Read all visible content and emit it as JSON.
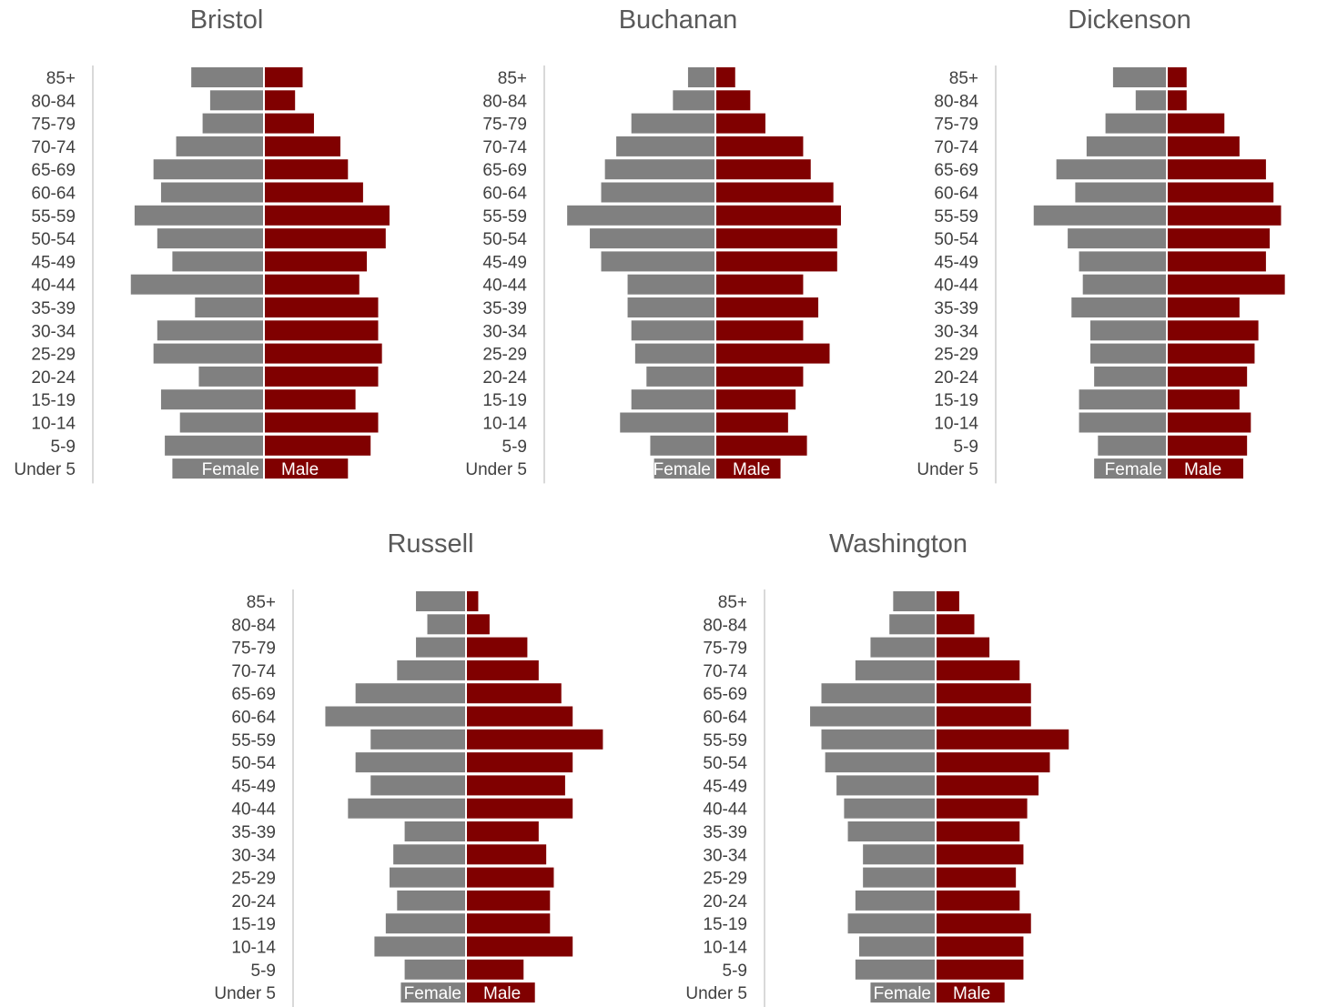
{
  "colors": {
    "female": "#808080",
    "male": "#800000",
    "axis": "#d9d9d9",
    "text": "#404040",
    "title": "#595959"
  },
  "chart_data": [
    {
      "type": "bar",
      "orientation": "population-pyramid",
      "title": "Bristol",
      "categories": [
        "85+",
        "80-84",
        "75-79",
        "70-74",
        "65-69",
        "60-64",
        "55-59",
        "50-54",
        "45-49",
        "40-44",
        "35-39",
        "30-34",
        "25-29",
        "20-24",
        "15-19",
        "10-14",
        "5-9",
        "Under 5"
      ],
      "series": [
        {
          "name": "Female",
          "values": [
            1.9,
            1.4,
            1.6,
            2.3,
            2.9,
            2.7,
            3.4,
            2.8,
            2.4,
            3.5,
            1.8,
            2.8,
            2.9,
            1.7,
            2.7,
            2.2,
            2.6,
            2.4
          ]
        },
        {
          "name": "Male",
          "values": [
            1.0,
            0.8,
            1.3,
            2.0,
            2.2,
            2.6,
            3.3,
            3.2,
            2.7,
            2.5,
            3.0,
            3.0,
            3.1,
            3.0,
            2.4,
            3.0,
            2.8,
            2.2
          ]
        }
      ]
    },
    {
      "type": "bar",
      "orientation": "population-pyramid",
      "title": "Buchanan",
      "categories": [
        "85+",
        "80-84",
        "75-79",
        "70-74",
        "65-69",
        "60-64",
        "55-59",
        "50-54",
        "45-49",
        "40-44",
        "35-39",
        "30-34",
        "25-29",
        "20-24",
        "15-19",
        "10-14",
        "5-9",
        "Under 5"
      ],
      "series": [
        {
          "name": "Female",
          "values": [
            0.7,
            1.1,
            2.2,
            2.6,
            2.9,
            3.0,
            3.9,
            3.3,
            3.0,
            2.3,
            2.3,
            2.2,
            2.1,
            1.8,
            2.2,
            2.5,
            1.7,
            1.6
          ]
        },
        {
          "name": "Male",
          "values": [
            0.5,
            0.9,
            1.3,
            2.3,
            2.5,
            3.1,
            3.3,
            3.2,
            3.2,
            2.3,
            2.7,
            2.3,
            3.0,
            2.3,
            2.1,
            1.9,
            2.4,
            1.7
          ]
        }
      ]
    },
    {
      "type": "bar",
      "orientation": "population-pyramid",
      "title": "Dickenson",
      "categories": [
        "85+",
        "80-84",
        "75-79",
        "70-74",
        "65-69",
        "60-64",
        "55-59",
        "50-54",
        "45-49",
        "40-44",
        "35-39",
        "30-34",
        "25-29",
        "20-24",
        "15-19",
        "10-14",
        "5-9",
        "Under 5"
      ],
      "series": [
        {
          "name": "Female",
          "values": [
            1.4,
            0.8,
            1.6,
            2.1,
            2.9,
            2.4,
            3.5,
            2.6,
            2.3,
            2.2,
            2.5,
            2.0,
            2.0,
            1.9,
            2.3,
            2.3,
            1.8,
            1.9
          ]
        },
        {
          "name": "Male",
          "values": [
            0.5,
            0.5,
            1.5,
            1.9,
            2.6,
            2.8,
            3.0,
            2.7,
            2.6,
            3.1,
            1.9,
            2.4,
            2.3,
            2.1,
            1.9,
            2.2,
            2.1,
            2.0
          ]
        }
      ]
    },
    {
      "type": "bar",
      "orientation": "population-pyramid",
      "title": "Russell",
      "categories": [
        "85+",
        "80-84",
        "75-79",
        "70-74",
        "65-69",
        "60-64",
        "55-59",
        "50-54",
        "45-49",
        "40-44",
        "35-39",
        "30-34",
        "25-29",
        "20-24",
        "15-19",
        "10-14",
        "5-9",
        "Under 5"
      ],
      "series": [
        {
          "name": "Female",
          "values": [
            1.3,
            1.0,
            1.3,
            1.8,
            2.9,
            3.7,
            2.5,
            2.9,
            2.5,
            3.1,
            1.6,
            1.9,
            2.0,
            1.8,
            2.1,
            2.4,
            1.6,
            1.7
          ]
        },
        {
          "name": "Male",
          "values": [
            0.3,
            0.6,
            1.6,
            1.9,
            2.5,
            2.8,
            3.6,
            2.8,
            2.6,
            2.8,
            1.9,
            2.1,
            2.3,
            2.2,
            2.2,
            2.8,
            1.5,
            1.8
          ]
        }
      ]
    },
    {
      "type": "bar",
      "orientation": "population-pyramid",
      "title": "Washington",
      "categories": [
        "85+",
        "80-84",
        "75-79",
        "70-74",
        "65-69",
        "60-64",
        "55-59",
        "50-54",
        "45-49",
        "40-44",
        "35-39",
        "30-34",
        "25-29",
        "20-24",
        "15-19",
        "10-14",
        "5-9",
        "Under 5"
      ],
      "series": [
        {
          "name": "Female",
          "values": [
            1.1,
            1.2,
            1.7,
            2.1,
            3.0,
            3.3,
            3.0,
            2.9,
            2.6,
            2.4,
            2.3,
            1.9,
            1.9,
            2.1,
            2.3,
            2.0,
            2.1,
            1.7
          ]
        },
        {
          "name": "Male",
          "values": [
            0.6,
            1.0,
            1.4,
            2.2,
            2.5,
            2.5,
            3.5,
            3.0,
            2.7,
            2.4,
            2.2,
            2.3,
            2.1,
            2.2,
            2.5,
            2.3,
            2.3,
            1.8
          ]
        }
      ]
    }
  ]
}
